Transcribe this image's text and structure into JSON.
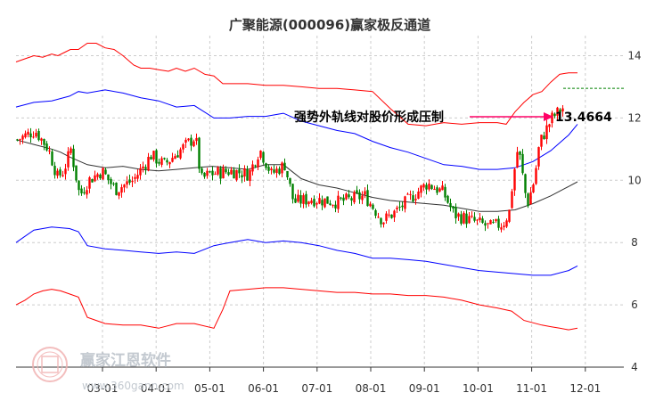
{
  "chart_data": {
    "type": "line",
    "title": "广聚能源(000096)赢家极反通道",
    "y_ticks": [
      4,
      6,
      8,
      10,
      12,
      14
    ],
    "ylim": [
      4,
      14.5
    ],
    "x_ticks": [
      "03-01",
      "04-01",
      "05-01",
      "06-01",
      "07-01",
      "08-01",
      "09-01",
      "10-01",
      "11-01",
      "12-01"
    ],
    "annotation": {
      "text": "强势外轨线对股价形成压制",
      "value_label": "13.4664",
      "value": 13.4664
    },
    "reference_line": 12.95,
    "watermark": {
      "name": "赢家江恩软件",
      "url": "www.360gann.com"
    },
    "colors": {
      "outer_band": "#ff0000",
      "inner_band": "#0000ff",
      "middle_line": "#333333",
      "candle_up": "#ff0000",
      "candle_down": "#008000",
      "annotation_arrow": "#ff0066",
      "reference_line": "#008000"
    },
    "series": [
      {
        "key": "outer_upper",
        "x": [
          0,
          10,
          20,
          30,
          40,
          47,
          54,
          61,
          70,
          80,
          90,
          100,
          110,
          120,
          132,
          140,
          150,
          160,
          171,
          180,
          190,
          200,
          212,
          222,
          232,
          240,
          260,
          280,
          300,
          320,
          340,
          360,
          380,
          400,
          420,
          440,
          460,
          480,
          500,
          520,
          540,
          550,
          560,
          570,
          580,
          590,
          600,
          610,
          620,
          630
        ],
        "y": [
          13.8,
          13.9,
          14.0,
          13.95,
          14.05,
          14.0,
          14.1,
          14.2,
          14.2,
          14.4,
          14.4,
          14.25,
          14.2,
          14.0,
          13.7,
          13.6,
          13.6,
          13.55,
          13.5,
          13.6,
          13.5,
          13.6,
          13.4,
          13.35,
          13.1,
          13.1,
          13.1,
          13.05,
          13.05,
          13.0,
          12.95,
          12.95,
          12.9,
          12.85,
          12.3,
          11.8,
          11.75,
          11.85,
          11.8,
          11.85,
          11.85,
          11.8,
          12.2,
          12.5,
          12.75,
          12.85,
          13.15,
          13.4,
          13.45,
          13.45
        ]
      },
      {
        "key": "inner_upper",
        "x": [
          0,
          20,
          40,
          60,
          70,
          80,
          100,
          120,
          140,
          160,
          180,
          200,
          222,
          240,
          260,
          280,
          300,
          320,
          340,
          360,
          380,
          400,
          420,
          440,
          460,
          480,
          500,
          520,
          540,
          560,
          580,
          600,
          620,
          630
        ],
        "y": [
          12.35,
          12.5,
          12.55,
          12.7,
          12.85,
          12.8,
          12.9,
          12.8,
          12.65,
          12.55,
          12.35,
          12.4,
          12.0,
          12.0,
          12.05,
          12.05,
          12.15,
          11.9,
          11.75,
          11.6,
          11.5,
          11.25,
          11.05,
          10.9,
          10.7,
          10.5,
          10.45,
          10.35,
          10.35,
          10.4,
          10.6,
          10.95,
          11.45,
          11.8
        ]
      },
      {
        "key": "middle",
        "x": [
          0,
          20,
          40,
          50,
          60,
          80,
          100,
          120,
          140,
          160,
          180,
          200,
          220,
          240,
          260,
          280,
          300,
          320,
          340,
          360,
          380,
          400,
          420,
          440,
          460,
          480,
          500,
          520,
          540,
          560,
          580,
          600,
          620,
          630
        ],
        "y": [
          11.3,
          11.15,
          11.0,
          10.9,
          10.75,
          10.5,
          10.4,
          10.45,
          10.35,
          10.3,
          10.35,
          10.4,
          10.45,
          10.4,
          10.35,
          10.5,
          10.5,
          10.05,
          9.85,
          9.75,
          9.6,
          9.45,
          9.35,
          9.3,
          9.25,
          9.2,
          9.1,
          9.0,
          9.0,
          9.05,
          9.25,
          9.5,
          9.8,
          9.95
        ]
      },
      {
        "key": "inner_lower",
        "x": [
          0,
          20,
          40,
          60,
          70,
          80,
          100,
          120,
          140,
          160,
          180,
          200,
          222,
          240,
          260,
          280,
          300,
          320,
          340,
          360,
          380,
          400,
          420,
          440,
          460,
          480,
          500,
          520,
          540,
          560,
          580,
          600,
          620,
          630
        ],
        "y": [
          8.0,
          8.4,
          8.5,
          8.45,
          8.35,
          7.9,
          7.8,
          7.75,
          7.7,
          7.65,
          7.7,
          7.65,
          7.9,
          8.0,
          8.1,
          8.0,
          8.05,
          8.0,
          7.9,
          7.75,
          7.65,
          7.5,
          7.5,
          7.45,
          7.4,
          7.3,
          7.2,
          7.1,
          7.05,
          7.0,
          6.95,
          6.95,
          7.1,
          7.25
        ]
      },
      {
        "key": "outer_lower",
        "x": [
          0,
          10,
          20,
          30,
          40,
          50,
          60,
          70,
          80,
          90,
          100,
          120,
          140,
          160,
          180,
          200,
          222,
          232,
          240,
          260,
          280,
          300,
          320,
          340,
          360,
          380,
          400,
          420,
          440,
          460,
          480,
          500,
          520,
          540,
          556,
          570,
          590,
          600,
          610,
          620,
          630
        ],
        "y": [
          6.0,
          6.15,
          6.35,
          6.45,
          6.5,
          6.45,
          6.35,
          6.25,
          5.6,
          5.5,
          5.4,
          5.35,
          5.35,
          5.25,
          5.4,
          5.4,
          5.25,
          5.85,
          6.45,
          6.5,
          6.55,
          6.55,
          6.5,
          6.45,
          6.4,
          6.4,
          6.35,
          6.35,
          6.3,
          6.3,
          6.25,
          6.15,
          6.0,
          5.9,
          5.8,
          5.5,
          5.35,
          5.3,
          5.25,
          5.2,
          5.25
        ]
      }
    ],
    "price_path": {
      "x": [
        0,
        20,
        35,
        45,
        52,
        60,
        70,
        80,
        95,
        110,
        130,
        150,
        165,
        180,
        200,
        206,
        215,
        240,
        260,
        272,
        285,
        300,
        310,
        330,
        360,
        390,
        410,
        425,
        440,
        460,
        478,
        490,
        510,
        530,
        545,
        552,
        556,
        562,
        572,
        580,
        586,
        600,
        615,
        622,
        630
      ],
      "y": [
        11.3,
        11.6,
        11.0,
        10.1,
        10.3,
        11.0,
        9.5,
        10.0,
        10.3,
        9.7,
        10.0,
        10.8,
        10.5,
        10.9,
        11.4,
        10.0,
        10.2,
        10.3,
        10.2,
        11.0,
        10.2,
        10.5,
        9.3,
        9.4,
        9.3,
        9.5,
        8.7,
        9.0,
        9.4,
        9.9,
        9.6,
        8.9,
        8.7,
        8.5,
        8.6,
        9.0,
        10.0,
        11.1,
        9.2,
        10.0,
        11.2,
        12.0,
        12.4,
        12.7,
        12.9
      ]
    }
  }
}
